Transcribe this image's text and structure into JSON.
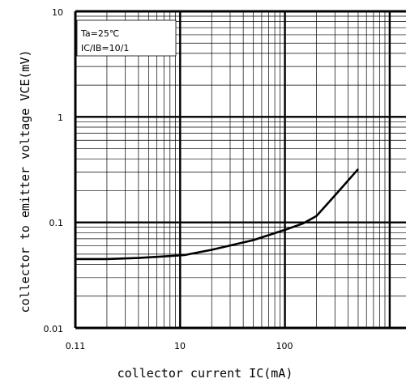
{
  "chart_data": {
    "type": "line",
    "xlabel": "collector current IC(mA)",
    "ylabel": "collector to emitter voltage VCE(mV)",
    "xscale": "log",
    "yscale": "log",
    "xlim": [
      1,
      1000
    ],
    "ylim": [
      0.01,
      10
    ],
    "x_tick_labels": [
      "0.11",
      "10",
      "100"
    ],
    "y_tick_labels": [
      "10",
      "1",
      "0.1",
      "0.01"
    ],
    "grid": true,
    "annotations": [
      "Ta=25℃",
      "IC/IB=10/1"
    ],
    "legend_position": "top-left",
    "series": [
      {
        "x": [
          1,
          2,
          4,
          8,
          11,
          20,
          50,
          100,
          150,
          200,
          300,
          500
        ],
        "y": [
          0.045,
          0.045,
          0.046,
          0.048,
          0.049,
          0.055,
          0.068,
          0.085,
          0.098,
          0.115,
          0.18,
          0.32
        ]
      }
    ]
  }
}
